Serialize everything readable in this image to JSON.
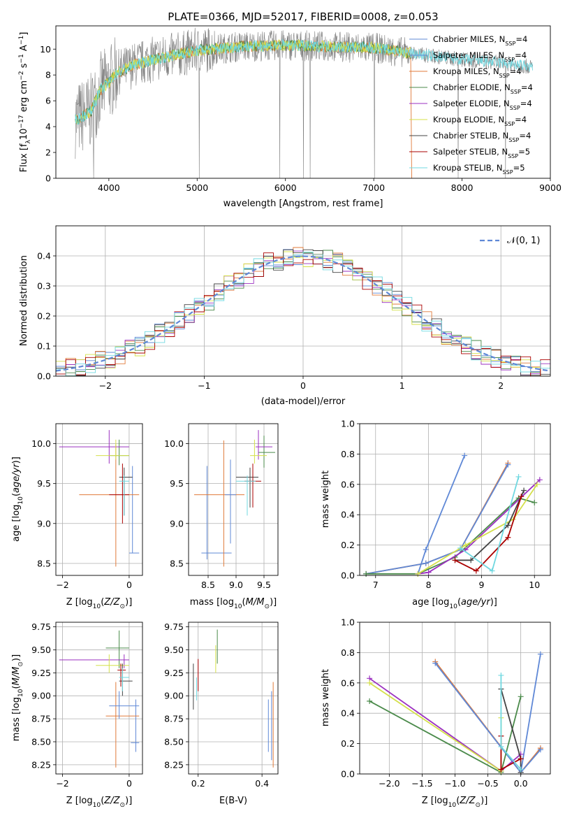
{
  "page_title": "PLATE=0366, MJD=52017, FIBERID=0008, z=0.053",
  "colors": {
    "Chabrier MILES": "#5f88d6",
    "Salpeter MILES": "#5f88d6",
    "Kroupa MILES": "#e07a3a",
    "Chabrier ELODIE": "#4a8a4a",
    "Salpeter ELODIE": "#9b30c0",
    "Kroupa ELODIE": "#d4e04a",
    "Chabrier STELIB": "#444444",
    "Salpeter STELIB": "#aa0000",
    "Kroupa STELIB": "#70d8e0",
    "data": "#808080",
    "gaussian": "#5f88d6"
  },
  "chart_data": [
    {
      "id": "spectrum",
      "type": "line",
      "title": "PLATE=0366, MJD=52017, FIBERID=0008, z=0.053",
      "xlabel": "wavelength [Angstrom, rest frame]",
      "ylabel": "Flux [f_λ10^-17 erg cm^-2 s^-1 A^-1]",
      "xlim": [
        3400,
        9000
      ],
      "ylim": [
        0,
        11.8
      ],
      "xticks": [
        "4000",
        "5000",
        "6000",
        "7000",
        "8000",
        "9000"
      ],
      "yticks": [
        "0",
        "2",
        "4",
        "6",
        "8",
        "10"
      ],
      "legend_position": "right",
      "legend": [
        "Chabrier MILES, N_SSP=4",
        "Salpeter MILES, N_SSP=4",
        "Kroupa MILES, N_SSP=4",
        "Chabrier ELODIE, N_SSP=4",
        "Salpeter ELODIE, N_SSP=4",
        "Kroupa ELODIE, N_SSP=4",
        "Chabrier STELIB, N_SSP=4",
        "Salpeter STELIB, N_SSP=5",
        "Kroupa STELIB, N_SSP=5"
      ],
      "continuum": {
        "x": [
          3620,
          3700,
          3800,
          3900,
          4000,
          4100,
          4300,
          4500,
          4800,
          5000,
          5500,
          6000,
          6500,
          7000,
          7500,
          8000,
          8500,
          8800
        ],
        "y": [
          4.5,
          4.8,
          5.2,
          6.8,
          7.4,
          8.2,
          8.8,
          9.2,
          9.6,
          9.9,
          10.2,
          10.3,
          10.2,
          10.1,
          9.6,
          9.2,
          8.9,
          8.6
        ]
      },
      "grid": false
    },
    {
      "id": "residuals",
      "type": "area",
      "xlabel": "(data-model)/error",
      "ylabel": "Normed distribution",
      "xlim": [
        -2.5,
        2.5
      ],
      "ylim": [
        0,
        0.5
      ],
      "xticks": [
        "−2",
        "−1",
        "0",
        "1",
        "2"
      ],
      "yticks": [
        "0.0",
        "0.1",
        "0.2",
        "0.3",
        "0.4"
      ],
      "legend": [
        "𝒩(0, 1)"
      ],
      "legend_position": "top-right",
      "grid": true
    },
    {
      "id": "z_age",
      "type": "scatter",
      "xlabel": "Z [log10(Z/Z☉)]",
      "ylabel": "age [log10(age/yr)]",
      "xlim": [
        -2.2,
        0.4
      ],
      "ylim": [
        8.35,
        10.25
      ],
      "xticks": [
        "−2",
        "0"
      ],
      "yticks": [
        "8.5",
        "9.0",
        "9.5",
        "10.0"
      ],
      "points": [
        {
          "model": "Chabrier MILES",
          "x": 0.1,
          "y": 8.63,
          "ylo": 8.63,
          "yhi": 9.72,
          "xlo": 0.0,
          "xhi": 0.3
        },
        {
          "model": "Kroupa MILES",
          "x": -0.4,
          "y": 9.36,
          "ylo": 8.46,
          "yhi": 9.99,
          "xlo": -1.5,
          "xhi": 0.3
        },
        {
          "model": "Chabrier ELODIE",
          "x": -0.3,
          "y": 9.85,
          "ylo": 9.73,
          "yhi": 10.05,
          "xlo": -0.6,
          "xhi": 0.0
        },
        {
          "model": "Salpeter ELODIE",
          "x": -0.6,
          "y": 9.96,
          "ylo": 9.75,
          "yhi": 10.17,
          "xlo": -2.1,
          "xhi": 0.0
        },
        {
          "model": "Kroupa ELODIE",
          "x": -0.4,
          "y": 9.85,
          "ylo": 9.8,
          "yhi": 10.05,
          "xlo": -1.0,
          "xhi": 0.0
        },
        {
          "model": "Chabrier STELIB",
          "x": -0.15,
          "y": 9.58,
          "ylo": 9.1,
          "yhi": 9.7,
          "xlo": -0.3,
          "xhi": 0.1
        },
        {
          "model": "Salpeter STELIB",
          "x": -0.2,
          "y": 9.36,
          "ylo": 9.0,
          "yhi": 9.75,
          "xlo": -0.6,
          "xhi": 0.0
        },
        {
          "model": "Kroupa STELIB",
          "x": -0.15,
          "y": 9.53,
          "ylo": 9.1,
          "yhi": 9.6,
          "xlo": -0.3,
          "xhi": 0.0
        }
      ],
      "grid": true
    },
    {
      "id": "mass_age",
      "type": "scatter",
      "xlabel": "mass [log10(M/M☉)]",
      "ylabel": "",
      "xlim": [
        8.15,
        9.75
      ],
      "ylim": [
        8.35,
        10.25
      ],
      "xticks": [
        "8.5",
        "9.0",
        "9.5"
      ],
      "yticks": [
        "8.5",
        "9.0",
        "9.5",
        "10.0"
      ],
      "points": [
        {
          "model": "Chabrier MILES",
          "x": 8.48,
          "y": 8.63,
          "ylo": 8.55,
          "yhi": 9.72,
          "xlo": 8.38,
          "xhi": 8.92
        },
        {
          "model": "Kroupa MILES",
          "x": 8.78,
          "y": 9.36,
          "ylo": 8.46,
          "yhi": 10.04,
          "xlo": 8.25,
          "xhi": 9.15
        },
        {
          "model": "Salpeter MILES",
          "x": 8.9,
          "y": 9.36,
          "ylo": 8.75,
          "yhi": 9.8,
          "xlo": 8.8,
          "xhi": 9.0
        },
        {
          "model": "Chabrier ELODIE",
          "x": 9.5,
          "y": 9.89,
          "ylo": 9.7,
          "yhi": 10.1,
          "xlo": 9.4,
          "xhi": 9.7
        },
        {
          "model": "Salpeter ELODIE",
          "x": 9.4,
          "y": 9.96,
          "ylo": 9.8,
          "yhi": 10.17,
          "xlo": 9.35,
          "xhi": 9.65
        },
        {
          "model": "Kroupa ELODIE",
          "x": 9.33,
          "y": 9.85,
          "ylo": 9.75,
          "yhi": 10.05,
          "xlo": 9.25,
          "xhi": 9.55
        },
        {
          "model": "Chabrier STELIB",
          "x": 9.25,
          "y": 9.58,
          "ylo": 9.2,
          "yhi": 9.7,
          "xlo": 9.0,
          "xhi": 9.4
        },
        {
          "model": "Salpeter STELIB",
          "x": 9.3,
          "y": 9.53,
          "ylo": 9.2,
          "yhi": 9.75,
          "xlo": 9.15,
          "xhi": 9.45
        },
        {
          "model": "Kroupa STELIB",
          "x": 9.2,
          "y": 9.53,
          "ylo": 9.1,
          "yhi": 9.6,
          "xlo": 9.0,
          "xhi": 9.35
        }
      ],
      "grid": true
    },
    {
      "id": "age_weight",
      "type": "line",
      "xlabel": "age [log10(age/yr)]",
      "ylabel": "mass weight",
      "xlim": [
        6.7,
        10.3
      ],
      "ylim": [
        0,
        1.0
      ],
      "xticks": [
        "7",
        "8",
        "9",
        "10"
      ],
      "yticks": [
        "0.0",
        "0.2",
        "0.4",
        "0.6",
        "0.8",
        "1.0"
      ],
      "series": [
        {
          "model": "Chabrier MILES",
          "x": [
            7.8,
            7.95,
            8.68
          ],
          "y": [
            0.01,
            0.17,
            0.79
          ]
        },
        {
          "model": "Kroupa MILES",
          "x": [
            6.82,
            7.95,
            8.6,
            9.5
          ],
          "y": [
            0.01,
            0.08,
            0.17,
            0.74
          ]
        },
        {
          "model": "Salpeter MILES",
          "x": [
            6.82,
            7.95,
            8.6,
            9.5
          ],
          "y": [
            0.01,
            0.08,
            0.17,
            0.73
          ]
        },
        {
          "model": "Chabrier ELODIE",
          "x": [
            6.82,
            7.8,
            8.5,
            9.7,
            10.0
          ],
          "y": [
            0.01,
            0.01,
            0.12,
            0.51,
            0.48
          ]
        },
        {
          "model": "Salpeter ELODIE",
          "x": [
            7.8,
            8.0,
            8.7,
            10.1
          ],
          "y": [
            0.01,
            0.02,
            0.17,
            0.63
          ]
        },
        {
          "model": "Kroupa ELODIE",
          "x": [
            7.8,
            8.7,
            9.6,
            10.05
          ],
          "y": [
            0.01,
            0.2,
            0.37,
            0.6
          ]
        },
        {
          "model": "Chabrier STELIB",
          "x": [
            8.5,
            8.8,
            9.5,
            9.8
          ],
          "y": [
            0.1,
            0.1,
            0.33,
            0.56
          ]
        },
        {
          "model": "Salpeter STELIB",
          "x": [
            8.5,
            8.9,
            9.5,
            9.75
          ],
          "y": [
            0.1,
            0.03,
            0.25,
            0.52
          ]
        },
        {
          "model": "Kroupa STELIB",
          "x": [
            8.6,
            9.2,
            9.7
          ],
          "y": [
            0.18,
            0.03,
            0.65
          ]
        }
      ],
      "grid": true
    },
    {
      "id": "z_mass",
      "type": "scatter",
      "xlabel": "Z [log10(Z/Z☉)]",
      "ylabel": "mass [log10(M/M☉)]",
      "xlim": [
        -2.2,
        0.4
      ],
      "ylim": [
        8.15,
        9.8
      ],
      "xticks": [
        "−2",
        "0"
      ],
      "yticks": [
        "8.25",
        "8.50",
        "8.75",
        "9.00",
        "9.25",
        "9.50",
        "9.75"
      ],
      "points": [
        {
          "model": "Chabrier MILES",
          "x": 0.2,
          "y": 8.49,
          "ylo": 8.39,
          "yhi": 8.96,
          "xlo": 0.05,
          "xhi": 0.3
        },
        {
          "model": "Kroupa MILES",
          "x": -0.4,
          "y": 8.78,
          "ylo": 8.22,
          "yhi": 9.15,
          "xlo": -0.7,
          "xhi": 0.3
        },
        {
          "model": "Salpeter MILES",
          "x": -0.3,
          "y": 8.89,
          "ylo": 8.75,
          "yhi": 9.05,
          "xlo": -0.6,
          "xhi": 0.3
        },
        {
          "model": "Chabrier ELODIE",
          "x": -0.3,
          "y": 9.52,
          "ylo": 9.3,
          "yhi": 9.71,
          "xlo": -0.7,
          "xhi": 0.0
        },
        {
          "model": "Salpeter ELODIE",
          "x": -0.15,
          "y": 9.39,
          "ylo": 9.3,
          "yhi": 9.45,
          "xlo": -2.1,
          "xhi": 0.0
        },
        {
          "model": "Kroupa ELODIE",
          "x": -0.6,
          "y": 9.33,
          "ylo": 9.25,
          "yhi": 9.45,
          "xlo": -1.0,
          "xhi": 0.0
        },
        {
          "model": "Chabrier STELIB",
          "x": -0.2,
          "y": 9.16,
          "ylo": 9.0,
          "yhi": 9.35,
          "xlo": -0.3,
          "xhi": 0.1
        },
        {
          "model": "Salpeter STELIB",
          "x": -0.25,
          "y": 9.28,
          "ylo": 9.1,
          "yhi": 9.35,
          "xlo": -0.35,
          "xhi": -0.1
        },
        {
          "model": "Kroupa STELIB",
          "x": -0.2,
          "y": 9.2,
          "ylo": 9.05,
          "yhi": 9.3,
          "xlo": -0.3,
          "xhi": 0.0
        }
      ],
      "grid": true
    },
    {
      "id": "ebv_mass",
      "type": "scatter",
      "xlabel": "E(B-V)",
      "ylabel": "",
      "xlim": [
        0.17,
        0.45
      ],
      "ylim": [
        8.15,
        9.8
      ],
      "xticks": [
        "0.2",
        "0.4"
      ],
      "yticks": [
        "8.25",
        "8.50",
        "8.75",
        "9.00",
        "9.25",
        "9.50",
        "9.75"
      ],
      "points": [
        {
          "model": "Chabrier MILES",
          "x": 0.42,
          "ylo": 8.39,
          "yhi": 8.96
        },
        {
          "model": "Kroupa MILES",
          "x": 0.435,
          "ylo": 8.22,
          "yhi": 9.15
        },
        {
          "model": "Salpeter MILES",
          "x": 0.43,
          "ylo": 8.3,
          "yhi": 9.05
        },
        {
          "model": "Chabrier ELODIE",
          "x": 0.26,
          "ylo": 9.35,
          "yhi": 9.72
        },
        {
          "model": "Kroupa ELODIE",
          "x": 0.255,
          "ylo": 9.25,
          "yhi": 9.55
        },
        {
          "model": "Chabrier STELIB",
          "x": 0.185,
          "ylo": 8.85,
          "yhi": 9.35
        },
        {
          "model": "Salpeter STELIB",
          "x": 0.2,
          "ylo": 9.05,
          "yhi": 9.4
        },
        {
          "model": "Kroupa STELIB",
          "x": 0.195,
          "ylo": 8.95,
          "yhi": 9.2
        }
      ],
      "grid": true
    },
    {
      "id": "z_weight",
      "type": "line",
      "xlabel": "Z [log10(Z/Z☉)]",
      "ylabel": "mass weight",
      "xlim": [
        -2.45,
        0.45
      ],
      "ylim": [
        0,
        1.0
      ],
      "xticks": [
        "−2.0",
        "−1.5",
        "−1.0",
        "−0.5",
        "0.0"
      ],
      "yticks": [
        "0.0",
        "0.2",
        "0.4",
        "0.6",
        "0.8",
        "1.0"
      ],
      "series": [
        {
          "model": "Chabrier MILES",
          "x": [
            0.0,
            0.3
          ],
          "y": [
            0.01,
            0.79
          ]
        },
        {
          "model": "Kroupa MILES",
          "x": [
            -1.3,
            0.0,
            0.3
          ],
          "y": [
            0.74,
            0.01,
            0.17
          ]
        },
        {
          "model": "Salpeter MILES",
          "x": [
            -1.3,
            0.0,
            0.3
          ],
          "y": [
            0.73,
            0.01,
            0.16
          ]
        },
        {
          "model": "Chabrier ELODIE",
          "x": [
            -2.3,
            -0.3,
            0.0
          ],
          "y": [
            0.48,
            0.01,
            0.51
          ]
        },
        {
          "model": "Salpeter ELODIE",
          "x": [
            -2.3,
            -0.3,
            0.0
          ],
          "y": [
            0.63,
            0.02,
            0.13
          ]
        },
        {
          "model": "Kroupa ELODIE",
          "x": [
            -2.3,
            -0.3,
            -0.3
          ],
          "y": [
            0.6,
            0.02,
            0.37
          ]
        },
        {
          "model": "Chabrier STELIB",
          "x": [
            -0.3,
            0.0,
            0.0
          ],
          "y": [
            0.56,
            0.1,
            0.01
          ]
        },
        {
          "model": "Salpeter STELIB",
          "x": [
            -0.3,
            -0.3,
            0.0
          ],
          "y": [
            0.25,
            0.03,
            0.1
          ]
        },
        {
          "model": "Kroupa STELIB",
          "x": [
            -0.3,
            -0.3,
            0.0
          ],
          "y": [
            0.65,
            0.18,
            0.03
          ]
        }
      ],
      "grid": true
    }
  ]
}
